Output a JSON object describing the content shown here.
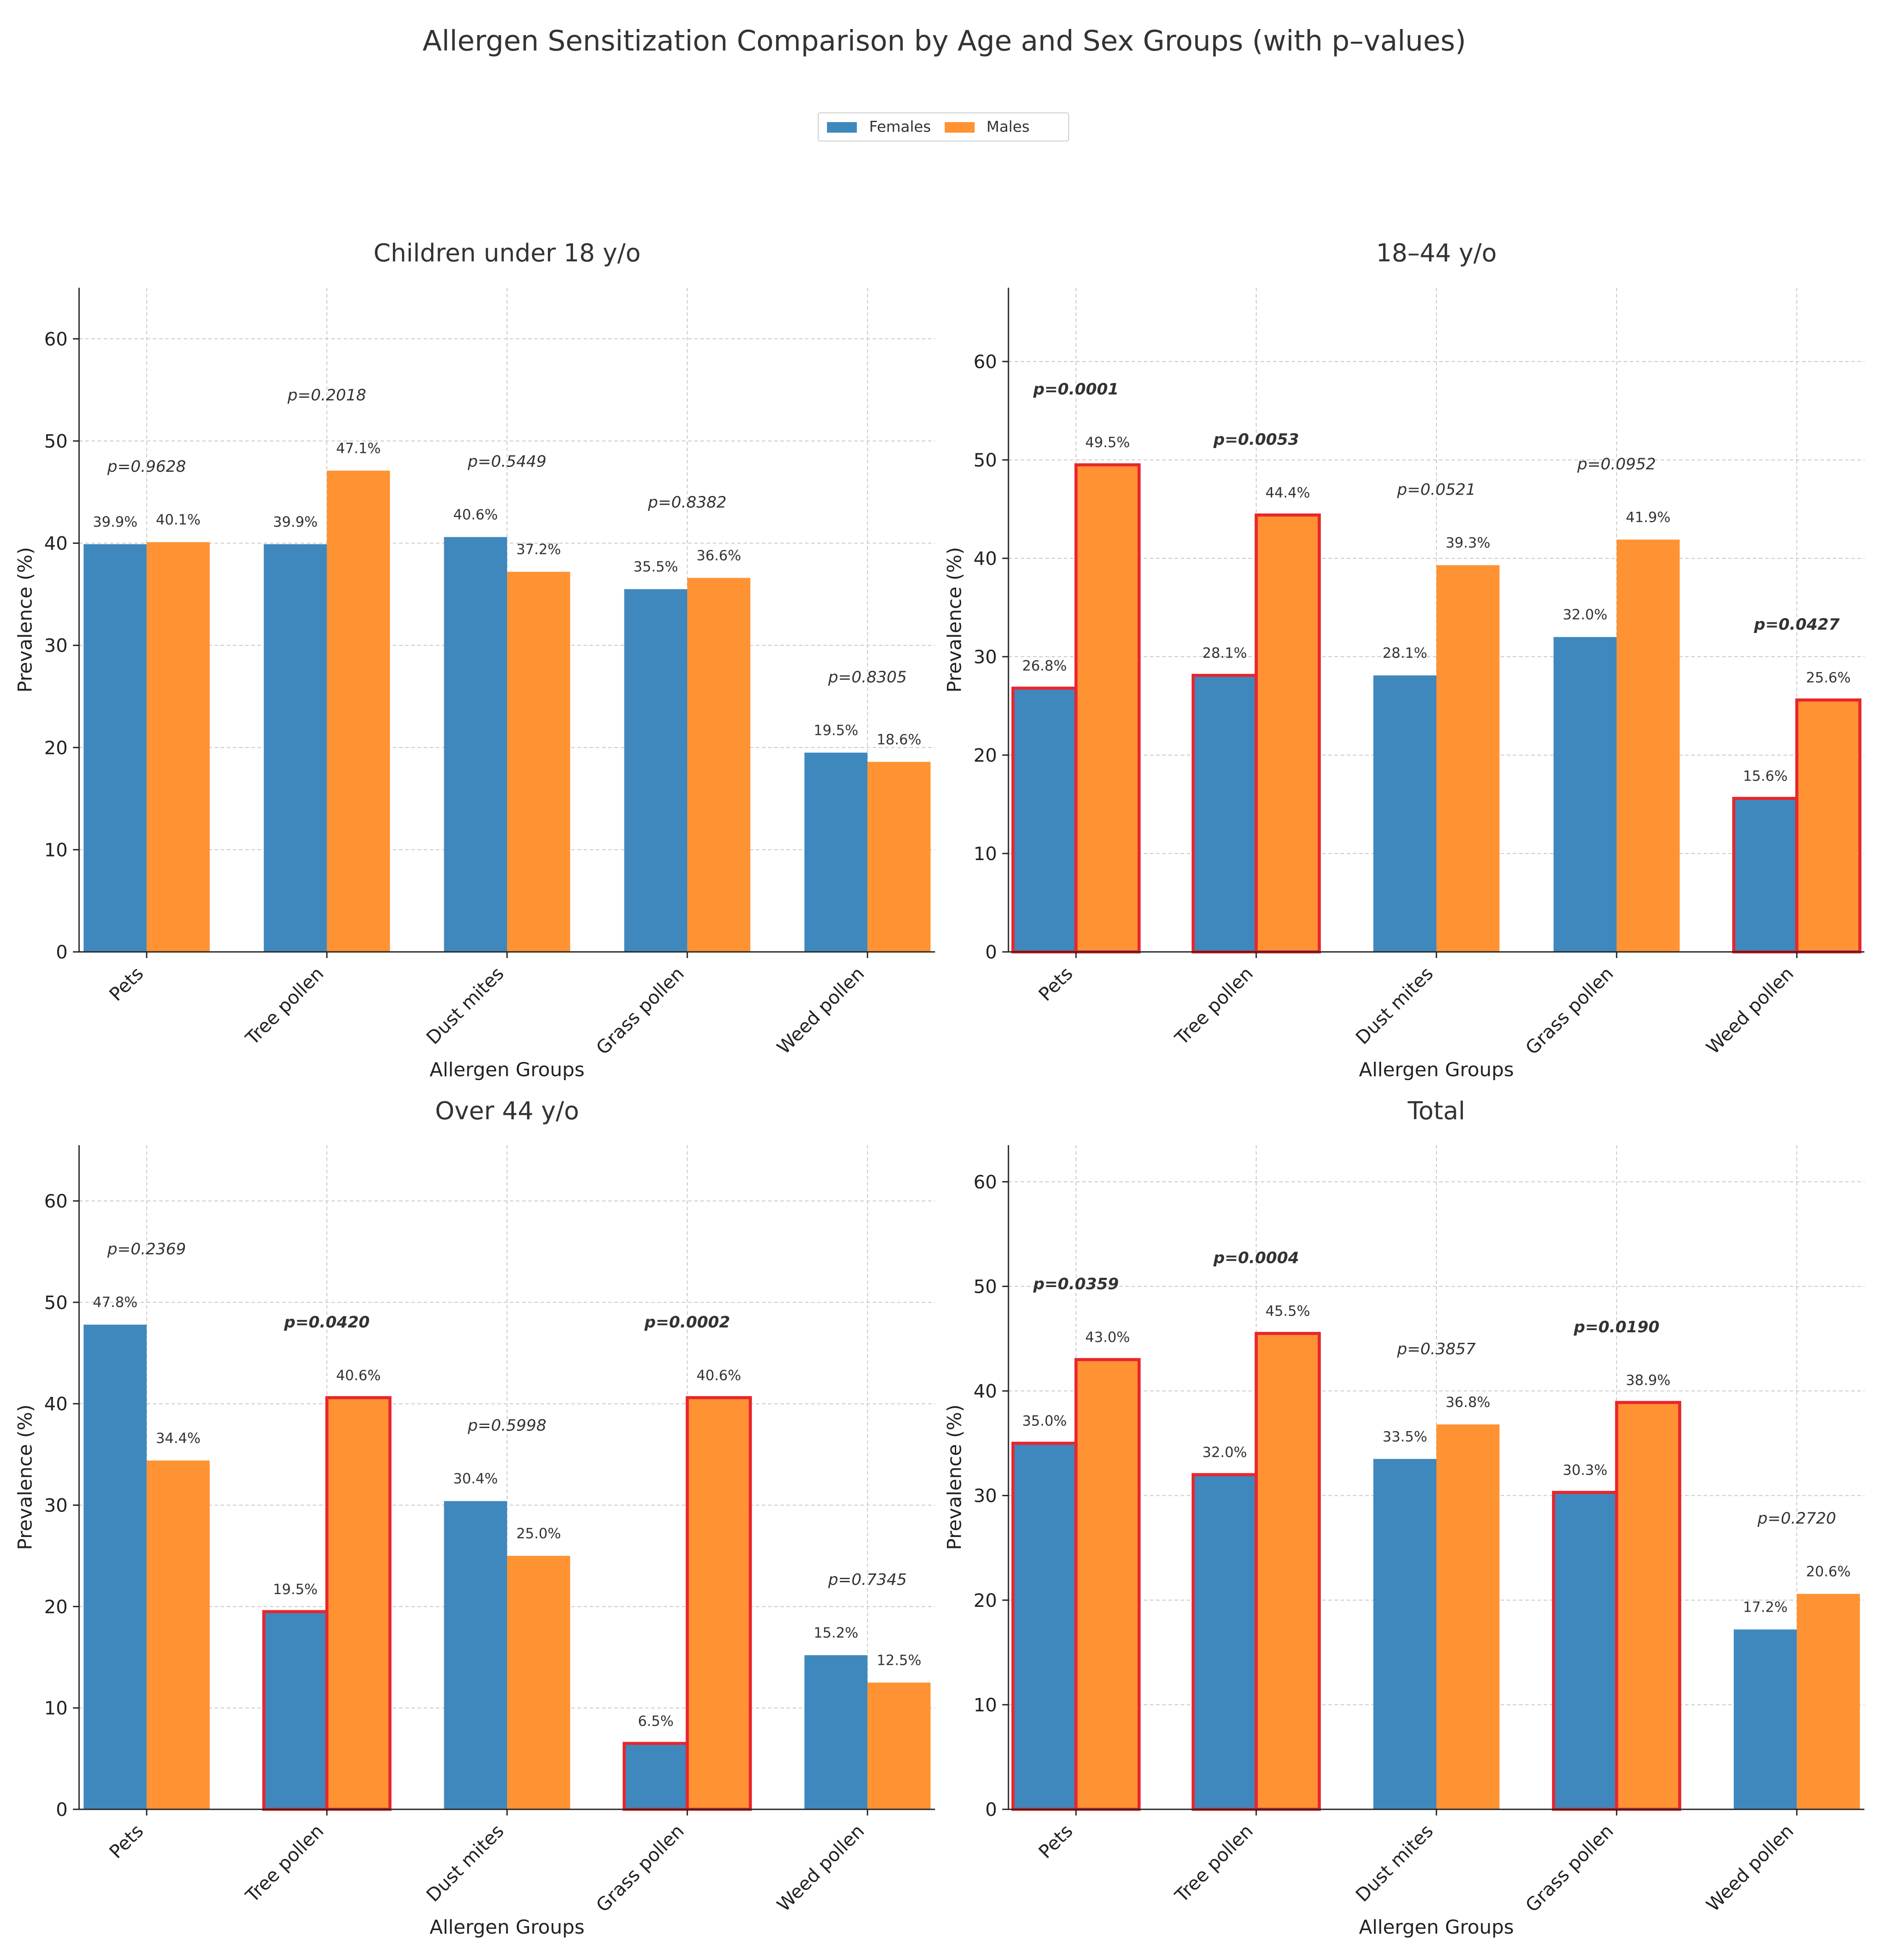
{
  "chart_data": {
    "title": "Allergen Sensitization Comparison by Age and Sex Groups (with p–values)",
    "legend": {
      "placement": "top-center",
      "entries": [
        {
          "name": "Females",
          "color": "#3f88bd"
        },
        {
          "name": "Males",
          "color": "#ff9232"
        }
      ]
    },
    "significance_highlight_color": "#e8262d",
    "panels": [
      {
        "type": "bar",
        "title": "Children under 18 y/o",
        "xlabel": "Allergen Groups",
        "ylabel": "Prevalence (%)",
        "ylim": [
          0,
          65
        ],
        "yticks": [
          0,
          10,
          20,
          30,
          40,
          50,
          60
        ],
        "grid": true,
        "categories": [
          "Pets",
          "Tree pollen",
          "Dust mites",
          "Grass pollen",
          "Weed pollen"
        ],
        "series": [
          {
            "name": "Females",
            "values": [
              39.9,
              39.9,
              40.6,
              35.5,
              19.5
            ]
          },
          {
            "name": "Males",
            "values": [
              40.1,
              47.1,
              37.2,
              36.6,
              18.6
            ]
          }
        ],
        "value_labels": [
          [
            "39.9%",
            "39.9%",
            "40.6%",
            "35.5%",
            "19.5%"
          ],
          [
            "40.1%",
            "47.1%",
            "37.2%",
            "36.6%",
            "18.6%"
          ]
        ],
        "p_labels": [
          "p=0.9628",
          "p=0.2018",
          "p=0.5449",
          "p=0.8382",
          "p=0.8305"
        ],
        "significant": [
          false,
          false,
          false,
          false,
          false
        ]
      },
      {
        "type": "bar",
        "title": "18–44 y/o",
        "xlabel": "Allergen Groups",
        "ylabel": "Prevalence (%)",
        "ylim": [
          0,
          67.5
        ],
        "yticks": [
          0,
          10,
          20,
          30,
          40,
          50,
          60
        ],
        "grid": true,
        "categories": [
          "Pets",
          "Tree pollen",
          "Dust mites",
          "Grass pollen",
          "Weed pollen"
        ],
        "series": [
          {
            "name": "Females",
            "values": [
              26.8,
              28.1,
              28.1,
              32.0,
              15.6
            ]
          },
          {
            "name": "Males",
            "values": [
              49.5,
              44.4,
              39.3,
              41.9,
              25.6
            ]
          }
        ],
        "value_labels": [
          [
            "26.8%",
            "28.1%",
            "28.1%",
            "32.0%",
            "15.6%"
          ],
          [
            "49.5%",
            "44.4%",
            "39.3%",
            "41.9%",
            "25.6%"
          ]
        ],
        "p_labels": [
          "p=0.0001",
          "p=0.0053",
          "p=0.0521",
          "p=0.0952",
          "p=0.0427"
        ],
        "significant": [
          true,
          true,
          false,
          false,
          true
        ]
      },
      {
        "type": "bar",
        "title": "Over 44 y/o",
        "xlabel": "Allergen Groups",
        "ylabel": "Prevalence (%)",
        "ylim": [
          0,
          65.5
        ],
        "yticks": [
          0,
          10,
          20,
          30,
          40,
          50,
          60
        ],
        "grid": true,
        "categories": [
          "Pets",
          "Tree pollen",
          "Dust mites",
          "Grass pollen",
          "Weed pollen"
        ],
        "series": [
          {
            "name": "Females",
            "values": [
              47.8,
              19.5,
              30.4,
              6.5,
              15.2
            ]
          },
          {
            "name": "Males",
            "values": [
              34.4,
              40.6,
              25.0,
              40.6,
              12.5
            ]
          }
        ],
        "value_labels": [
          [
            "47.8%",
            "19.5%",
            "30.4%",
            "6.5%",
            "15.2%"
          ],
          [
            "34.4%",
            "40.6%",
            "25.0%",
            "40.6%",
            "12.5%"
          ]
        ],
        "p_labels": [
          "p=0.2369",
          "p=0.0420",
          "p=0.5998",
          "p=0.0002",
          "p=0.7345"
        ],
        "significant": [
          false,
          true,
          false,
          true,
          false
        ]
      },
      {
        "type": "bar",
        "title": "Total",
        "xlabel": "Allergen Groups",
        "ylabel": "Prevalence (%)",
        "ylim": [
          0,
          63.5
        ],
        "yticks": [
          0,
          10,
          20,
          30,
          40,
          50,
          60
        ],
        "grid": true,
        "categories": [
          "Pets",
          "Tree pollen",
          "Dust mites",
          "Grass pollen",
          "Weed pollen"
        ],
        "series": [
          {
            "name": "Females",
            "values": [
              35.0,
              32.0,
              33.5,
              30.3,
              17.2
            ]
          },
          {
            "name": "Males",
            "values": [
              43.0,
              45.5,
              36.8,
              38.9,
              20.6
            ]
          }
        ],
        "value_labels": [
          [
            "35.0%",
            "32.0%",
            "33.5%",
            "30.3%",
            "17.2%"
          ],
          [
            "43.0%",
            "45.5%",
            "36.8%",
            "38.9%",
            "20.6%"
          ]
        ],
        "p_labels": [
          "p=0.0359",
          "p=0.0004",
          "p=0.3857",
          "p=0.0190",
          "p=0.2720"
        ],
        "significant": [
          true,
          true,
          false,
          true,
          false
        ]
      }
    ]
  }
}
